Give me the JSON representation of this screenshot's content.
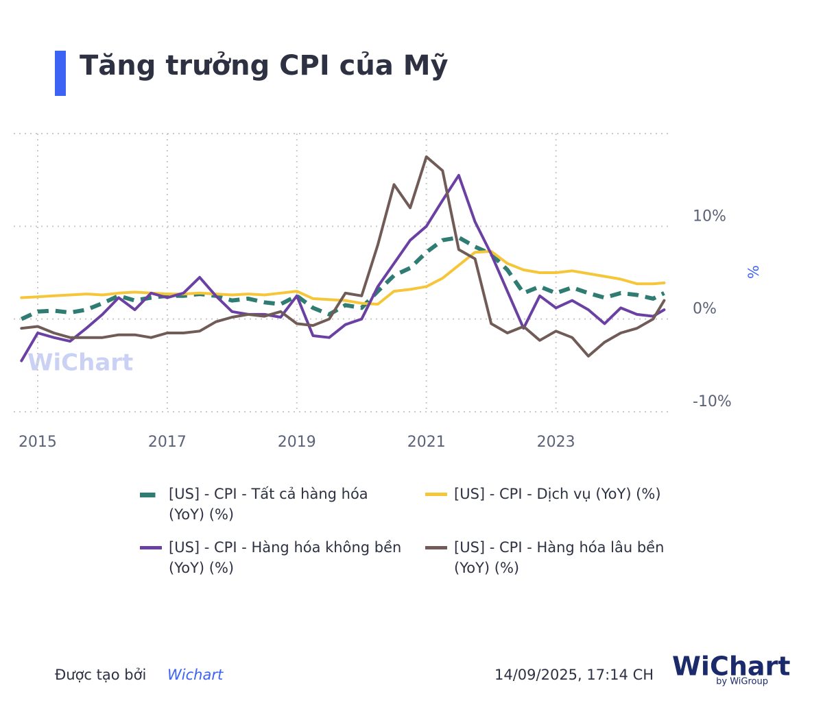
{
  "chart_data": {
    "type": "line",
    "title": "Tăng trưởng CPI của Mỹ",
    "y_label": "%",
    "watermark": "WiChart",
    "x": [
      2014.75,
      2015,
      2015.25,
      2015.5,
      2015.75,
      2016,
      2016.25,
      2016.5,
      2016.75,
      2017,
      2017.25,
      2017.5,
      2017.75,
      2018,
      2018.25,
      2018.5,
      2018.75,
      2019,
      2019.25,
      2019.5,
      2019.75,
      2020,
      2020.25,
      2020.5,
      2020.75,
      2021,
      2021.25,
      2021.5,
      2021.75,
      2022,
      2022.25,
      2022.5,
      2022.75,
      2023,
      2023.25,
      2023.5,
      2023.75,
      2024,
      2024.25,
      2024.5,
      2024.67
    ],
    "series": [
      {
        "name": "[US] - CPI - Tất cả hàng hóa (YoY) (%)",
        "color": "#2f7d72",
        "dashed": true,
        "values": [
          0.0,
          0.8,
          0.9,
          0.7,
          1.0,
          1.7,
          2.5,
          2.0,
          2.3,
          2.5,
          2.5,
          2.7,
          2.5,
          2.0,
          2.2,
          1.8,
          1.6,
          2.5,
          1.2,
          0.5,
          1.5,
          1.2,
          3.0,
          4.7,
          5.5,
          7.2,
          8.5,
          8.8,
          7.8,
          7.0,
          5.3,
          2.8,
          3.5,
          2.8,
          3.4,
          2.8,
          2.3,
          2.8,
          2.6,
          2.2,
          2.8
        ]
      },
      {
        "name": "[US] - CPI - Dịch vụ (YoY) (%)",
        "color": "#f6c63a",
        "dashed": false,
        "values": [
          2.3,
          2.4,
          2.5,
          2.6,
          2.7,
          2.6,
          2.8,
          2.9,
          2.8,
          2.7,
          2.7,
          2.8,
          2.7,
          2.6,
          2.7,
          2.6,
          2.8,
          3.0,
          2.2,
          2.1,
          2.0,
          1.7,
          1.6,
          3.0,
          3.2,
          3.5,
          4.4,
          5.8,
          7.2,
          7.3,
          6.0,
          5.3,
          5.0,
          5.0,
          5.2,
          4.9,
          4.6,
          4.3,
          3.8,
          3.8,
          3.9
        ]
      },
      {
        "name": "[US] - CPI - Hàng hóa không bền (YoY) (%)",
        "color": "#6b40a3",
        "dashed": false,
        "values": [
          -4.5,
          -1.5,
          -2.0,
          -2.4,
          -1.0,
          0.5,
          2.3,
          1.0,
          2.8,
          2.3,
          2.8,
          4.5,
          2.5,
          0.8,
          0.5,
          0.5,
          0.2,
          2.5,
          -1.8,
          -2.0,
          -0.6,
          0.0,
          3.5,
          6.0,
          8.5,
          10.0,
          12.8,
          15.5,
          10.5,
          7.0,
          3.0,
          -1.0,
          2.5,
          1.2,
          2.0,
          1.0,
          -0.5,
          1.2,
          0.5,
          0.3,
          1.0
        ]
      },
      {
        "name": "[US] - CPI - Hàng hóa lâu bền (YoY) (%)",
        "color": "#705b56",
        "dashed": false,
        "values": [
          -1.0,
          -0.8,
          -1.5,
          -2.0,
          -2.0,
          -2.0,
          -1.7,
          -1.7,
          -2.0,
          -1.5,
          -1.5,
          -1.3,
          -0.3,
          0.2,
          0.5,
          0.3,
          0.8,
          -0.5,
          -0.7,
          0.0,
          2.8,
          2.5,
          8.0,
          14.5,
          12.0,
          17.5,
          16.0,
          7.5,
          6.5,
          -0.5,
          -1.5,
          -0.8,
          -2.3,
          -1.3,
          -2.0,
          -4.0,
          -2.5,
          -1.5,
          -1.0,
          0.0,
          2.0
        ]
      }
    ],
    "xlim": [
      2014.63,
      2024.74
    ],
    "xticks": [
      2015,
      2017,
      2019,
      2021,
      2023
    ],
    "ylim": [
      -10,
      20
    ],
    "yticks": [
      {
        "value": -10,
        "label": "-10%"
      },
      {
        "value": 0,
        "label": "0%"
      },
      {
        "value": 10,
        "label": "10%"
      }
    ],
    "grid": true,
    "legend": "bottom"
  },
  "footer": {
    "created_by": "Được tạo bởi",
    "brand": "Wichart",
    "timestamp": "14/09/2025, 17:14 CH",
    "logo": "WiChart",
    "logo_sub": "by WiGroup"
  }
}
